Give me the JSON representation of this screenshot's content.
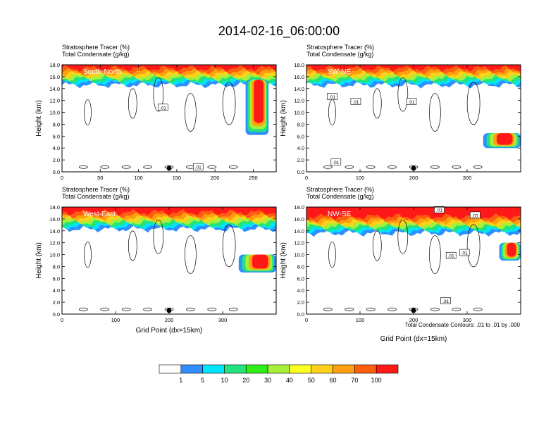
{
  "title": "2014-02-16_06:00:00",
  "colors": {
    "scale": [
      "#ffffff",
      "#2f8fff",
      "#00e5ff",
      "#22e37c",
      "#2eee1a",
      "#a6f03a",
      "#ffff22",
      "#ffd11a",
      "#ff9f10",
      "#ff5e10",
      "#ff1818"
    ],
    "axis": "#000000"
  },
  "chart_data": [
    {
      "type": "heatmap",
      "label": "South-North",
      "subtitle_line1": "Stratosphere Tracer   (%)",
      "subtitle_line2": "Total Condensate   (g/kg)",
      "ylabel": "Height (km)",
      "xlabel": "",
      "xlim": [
        0,
        280
      ],
      "ylim": [
        0,
        18
      ],
      "xticks": [
        "0",
        "50",
        "100",
        "150",
        "200",
        "250"
      ],
      "xtick_values": [
        0,
        50,
        100,
        150,
        200,
        250
      ],
      "yticks": [
        "0.0",
        "2.0",
        "4.0",
        "6.0",
        "8.0",
        "10.0",
        "12.0",
        "14.0",
        "16.0",
        "18.0"
      ],
      "contour_labels": [
        ".01",
        ".01"
      ],
      "contour_label_pos": [
        [
          132,
          10.8
        ],
        [
          178,
          0.8
        ]
      ],
      "marker_x": 140,
      "stratosphere_base_km": 15.5,
      "intrusions": [
        {
          "x": [
            240,
            270
          ],
          "bottom_km": 6.2,
          "top_km": 15.5
        }
      ]
    },
    {
      "type": "heatmap",
      "label": "SW-NE",
      "subtitle_line1": "Stratosphere Tracer   (%)",
      "subtitle_line2": "Total Condensate   (g/kg)",
      "ylabel": "Height (km)",
      "xlabel": "",
      "xlim": [
        0,
        400
      ],
      "ylim": [
        0,
        18
      ],
      "xticks": [
        "0",
        "100",
        "200",
        "300"
      ],
      "xtick_values": [
        0,
        100,
        200,
        300
      ],
      "yticks": [
        "0.0",
        "2.0",
        "4.0",
        "6.0",
        "8.0",
        "10.0",
        "12.0",
        "14.0",
        "16.0",
        "18.0"
      ],
      "contour_labels": [
        ".01",
        ".01",
        ".01",
        ".01"
      ],
      "contour_label_pos": [
        [
          48,
          12.6
        ],
        [
          92,
          11.8
        ],
        [
          196,
          11.8
        ],
        [
          55,
          1.6
        ]
      ],
      "marker_x": 200,
      "stratosphere_base_km": 15.5,
      "intrusions": [
        {
          "x": [
            330,
            400
          ],
          "bottom_km": 4.0,
          "top_km": 6.5
        }
      ]
    },
    {
      "type": "heatmap",
      "label": "West-East",
      "subtitle_line1": "Stratosphere Tracer   (%)",
      "subtitle_line2": "Total Condensate   (g/kg)",
      "ylabel": "Height (km)",
      "xlabel": "Grid Point (dx=15km)",
      "xlim": [
        0,
        400
      ],
      "ylim": [
        0,
        18
      ],
      "xticks": [
        "0",
        "100",
        "200",
        "300"
      ],
      "xtick_values": [
        0,
        100,
        200,
        300
      ],
      "yticks": [
        "0.0",
        "2.0",
        "4.0",
        "6.0",
        "8.0",
        "10.0",
        "12.0",
        "14.0",
        "16.0",
        "18.0"
      ],
      "contour_labels": [],
      "contour_label_pos": [],
      "marker_x": 200,
      "stratosphere_base_km": 15.2,
      "intrusions": [
        {
          "x": [
            330,
            400
          ],
          "bottom_km": 7.0,
          "top_km": 10.0
        }
      ]
    },
    {
      "type": "heatmap",
      "label": "NW-SE",
      "subtitle_line1": "Stratosphere Tracer   (%)",
      "subtitle_line2": "Total Condensate   (g/kg)",
      "ylabel": "Height (km)",
      "xlabel": "Grid Point (dx=15km)",
      "xlim": [
        0,
        400
      ],
      "ylim": [
        0,
        18
      ],
      "xticks": [
        "0",
        "100",
        "200",
        "300"
      ],
      "xtick_values": [
        0,
        100,
        200,
        300
      ],
      "yticks": [
        "0.0",
        "2.0",
        "4.0",
        "6.0",
        "8.0",
        "10.0",
        "12.0",
        "14.0",
        "16.0",
        "18.0"
      ],
      "contour_labels": [
        ".01",
        ".01",
        ".01",
        ".01",
        ".01"
      ],
      "contour_label_pos": [
        [
          248,
          17.5
        ],
        [
          315,
          16.6
        ],
        [
          270,
          9.8
        ],
        [
          295,
          10.3
        ],
        [
          260,
          2.2
        ]
      ],
      "marker_x": 200,
      "stratosphere_base_km": 14.5,
      "intrusions": [
        {
          "x": [
            360,
            400
          ],
          "bottom_km": 9.0,
          "top_km": 12.0
        }
      ]
    }
  ],
  "contour_note": "Total Condensate Contours: .01 to .01 by .000",
  "colorbar": {
    "labels": [
      "1",
      "5",
      "10",
      "20",
      "30",
      "40",
      "50",
      "60",
      "70",
      "100"
    ]
  }
}
